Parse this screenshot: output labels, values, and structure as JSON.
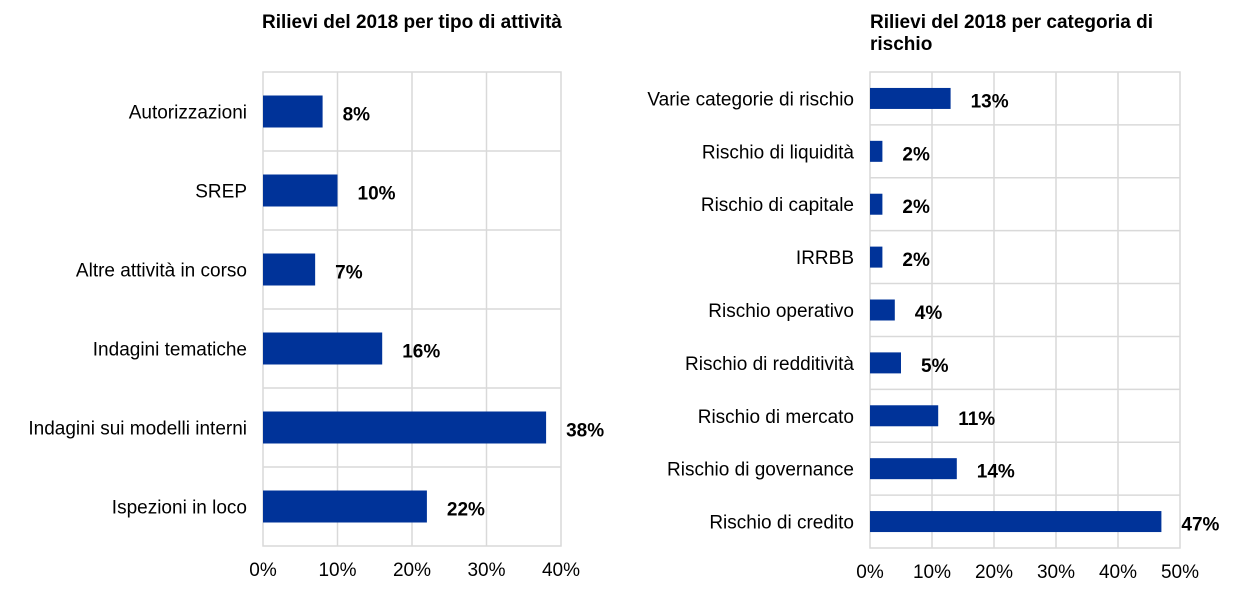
{
  "chart_data": [
    {
      "type": "bar",
      "orientation": "horizontal",
      "title": "Rilievi del 2018 per tipo di attività",
      "categories": [
        "Autorizzazioni",
        "SREP",
        "Altre attività in corso",
        "Indagini tematiche",
        "Indagini sui modelli interni",
        "Ispezioni in loco"
      ],
      "values": [
        8,
        10,
        7,
        16,
        38,
        22
      ],
      "value_labels": [
        "8%",
        "10%",
        "7%",
        "16%",
        "38%",
        "22%"
      ],
      "xlim": [
        0,
        40
      ],
      "ticks": [
        "0%",
        "10%",
        "20%",
        "30%",
        "40%"
      ],
      "bar_color": "#003399",
      "grid": true
    },
    {
      "type": "bar",
      "orientation": "horizontal",
      "title": "Rilievi del 2018 per categoria di rischio",
      "categories": [
        "Varie categorie di rischio",
        "Rischio di liquidità",
        "Rischio di capitale",
        "IRRBB",
        "Rischio operativo",
        "Rischio di redditività",
        "Rischio di mercato",
        "Rischio di governance",
        "Rischio di credito"
      ],
      "values": [
        13,
        2,
        2,
        2,
        4,
        5,
        11,
        14,
        47
      ],
      "value_labels": [
        "13%",
        "2%",
        "2%",
        "2%",
        "4%",
        "5%",
        "11%",
        "14%",
        "47%"
      ],
      "xlim": [
        0,
        50
      ],
      "ticks": [
        "0%",
        "10%",
        "20%",
        "30%",
        "40%",
        "50%"
      ],
      "bar_color": "#003399",
      "grid": true
    }
  ]
}
